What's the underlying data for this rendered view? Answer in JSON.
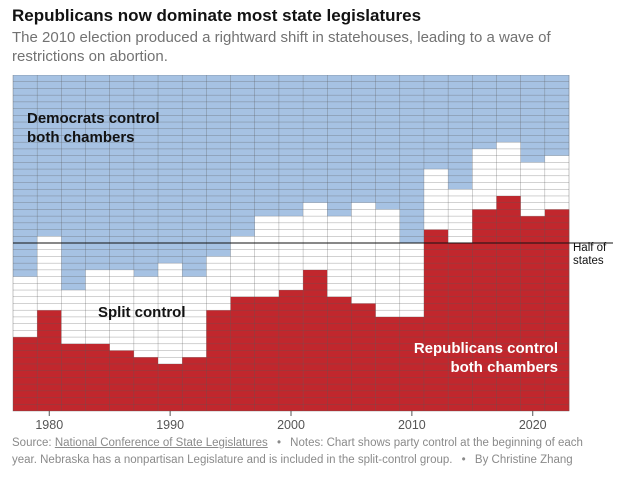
{
  "header": {
    "title": "Republicans now dominate most state legislatures",
    "subtitle": "The 2010 election produced a rightward shift in statehouses, leading to a wave of restrictions on abortion."
  },
  "footer": {
    "source_label": "Source:",
    "source_link": "National Conference of State Legislatures",
    "notes": "Notes: Chart shows party control at the beginning of each year. Nebraska has a nonpartisan Legislature and is included in the split-control group.",
    "byline": "By Christine Zhang"
  },
  "chart_data": {
    "type": "area",
    "stacking": "stacked",
    "x_unit": "year",
    "x": [
      1977,
      1979,
      1981,
      1983,
      1985,
      1987,
      1989,
      1991,
      1993,
      1995,
      1997,
      1999,
      2001,
      2003,
      2005,
      2007,
      2009,
      2011,
      2013,
      2015,
      2017,
      2019,
      2021
    ],
    "series": [
      {
        "name": "Republicans control both chambers",
        "color": "#c1272d",
        "values": [
          11,
          15,
          10,
          10,
          9,
          8,
          7,
          8,
          15,
          17,
          17,
          18,
          21,
          17,
          16,
          14,
          14,
          27,
          25,
          30,
          32,
          29,
          30
        ]
      },
      {
        "name": "Split control",
        "color": "#ffffff",
        "values": [
          9,
          11,
          8,
          11,
          12,
          12,
          15,
          12,
          8,
          9,
          12,
          11,
          10,
          12,
          15,
          16,
          11,
          9,
          8,
          9,
          8,
          8,
          8
        ]
      },
      {
        "name": "Democrats control both chambers",
        "color": "#a6c2e3",
        "values": [
          30,
          24,
          32,
          29,
          29,
          30,
          28,
          30,
          27,
          24,
          21,
          21,
          19,
          21,
          19,
          20,
          25,
          14,
          17,
          11,
          10,
          13,
          12
        ]
      }
    ],
    "total_states": 50,
    "reference_line": {
      "value": 25,
      "label": [
        "Half of",
        "states"
      ]
    },
    "xlim": [
      1977,
      2023
    ],
    "ylim": [
      0,
      50
    ],
    "xticks": [
      1980,
      1990,
      2000,
      2010,
      2020
    ],
    "area_labels": [
      {
        "lines": [
          "Democrats control",
          "both chambers"
        ],
        "color": "#121212"
      },
      {
        "lines": [
          "Split control"
        ],
        "color": "#121212"
      },
      {
        "lines": [
          "Republicans control",
          "both chambers"
        ],
        "color": "#ffffff"
      }
    ],
    "grid_color": "#5a5a5a"
  }
}
